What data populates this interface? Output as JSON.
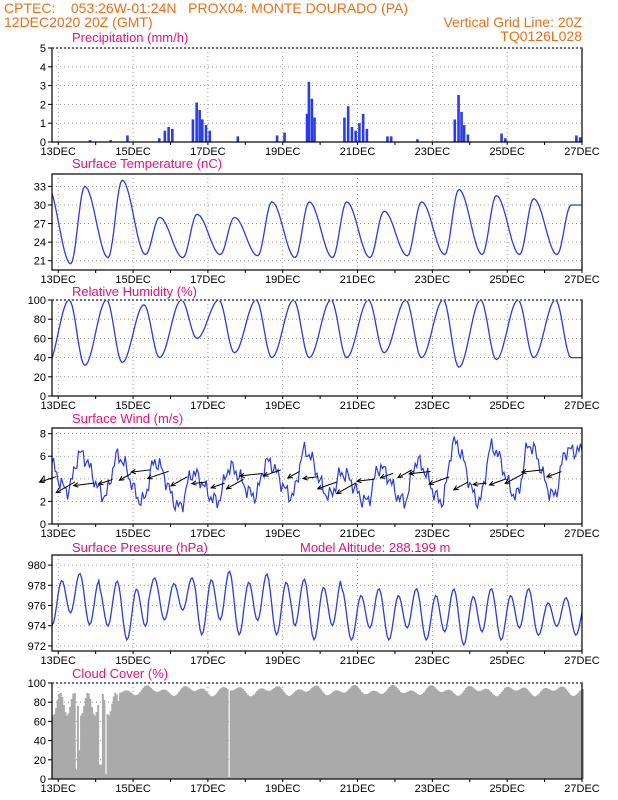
{
  "header": {
    "line1": "CPTEC:    053:26W-01:24N   PROX04: MONTE DOURADO (PA)",
    "line2_left": "12DEC2020 20Z (GMT)",
    "line2_right": "Vertical Grid Line: 20Z",
    "line3_right": "TQ0126L028"
  },
  "colors": {
    "header": "#e8701a",
    "title": "#e8127a",
    "series": "#2a3de0",
    "cloud": "#aaaaaa",
    "grid": "#888888",
    "arrow": "#000000"
  },
  "x_axis": {
    "start_day": 12.833,
    "end_day": 27.0,
    "tick_days": [
      13,
      15,
      17,
      19,
      21,
      23,
      25,
      27
    ],
    "tick_labels": [
      "13DEC",
      "15DEC",
      "17DEC",
      "19DEC",
      "21DEC",
      "23DEC",
      "25DEC",
      "27DEC"
    ]
  },
  "model_altitude_note": "Model Altitude: 288.199 m",
  "chart_data": [
    {
      "type": "bar",
      "title": "Precipitation (mm/h)",
      "unit": "mm/h",
      "ylim": [
        0,
        5
      ],
      "yticks": [
        0,
        1,
        2,
        3,
        4,
        5
      ],
      "events": [
        {
          "day": 13.85,
          "value": 0.1
        },
        {
          "day": 14.4,
          "value": 0.1
        },
        {
          "day": 14.85,
          "value": 0.35
        },
        {
          "day": 15.7,
          "value": 0.2
        },
        {
          "day": 15.85,
          "value": 0.6
        },
        {
          "day": 15.95,
          "value": 0.8
        },
        {
          "day": 16.05,
          "value": 0.7
        },
        {
          "day": 16.6,
          "value": 1.2
        },
        {
          "day": 16.7,
          "value": 2.1
        },
        {
          "day": 16.78,
          "value": 1.7
        },
        {
          "day": 16.85,
          "value": 1.2
        },
        {
          "day": 16.95,
          "value": 0.9
        },
        {
          "day": 17.05,
          "value": 0.6
        },
        {
          "day": 17.8,
          "value": 0.3
        },
        {
          "day": 18.85,
          "value": 0.35
        },
        {
          "day": 19.05,
          "value": 0.5
        },
        {
          "day": 19.65,
          "value": 1.5
        },
        {
          "day": 19.7,
          "value": 3.2
        },
        {
          "day": 19.78,
          "value": 2.3
        },
        {
          "day": 19.85,
          "value": 1.3
        },
        {
          "day": 20.65,
          "value": 1.3
        },
        {
          "day": 20.75,
          "value": 1.9
        },
        {
          "day": 20.85,
          "value": 0.8
        },
        {
          "day": 20.95,
          "value": 0.6
        },
        {
          "day": 21.05,
          "value": 1.0
        },
        {
          "day": 21.15,
          "value": 1.5
        },
        {
          "day": 21.25,
          "value": 0.7
        },
        {
          "day": 21.8,
          "value": 0.3
        },
        {
          "day": 21.9,
          "value": 0.3
        },
        {
          "day": 22.6,
          "value": 0.15
        },
        {
          "day": 23.6,
          "value": 1.2
        },
        {
          "day": 23.7,
          "value": 2.5
        },
        {
          "day": 23.78,
          "value": 1.6
        },
        {
          "day": 23.85,
          "value": 0.9
        },
        {
          "day": 23.95,
          "value": 0.4
        },
        {
          "day": 24.85,
          "value": 0.45
        },
        {
          "day": 24.95,
          "value": 0.2
        },
        {
          "day": 26.85,
          "value": 0.35
        },
        {
          "day": 26.95,
          "value": 0.25
        }
      ]
    },
    {
      "type": "line",
      "title": "Surface Temperature (nC)",
      "unit": "°C",
      "ylim": [
        19.5,
        35
      ],
      "yticks": [
        21,
        24,
        27,
        30,
        33
      ],
      "daily_min": [
        20.5,
        20.5,
        21.5,
        22.0,
        21.5,
        22.0,
        21.8,
        21.5,
        21.5,
        21.5,
        21.8,
        22.0,
        22.0,
        22.0,
        22.0
      ],
      "daily_max": [
        33.0,
        33.0,
        34.0,
        28.0,
        28.5,
        28.0,
        30.5,
        30.5,
        30.5,
        29.0,
        30.5,
        32.5,
        31.5,
        31.0,
        30.0
      ],
      "note": "diurnal cycle: min ~08Z, max ~17Z"
    },
    {
      "type": "line",
      "title": "Relative Humidity (%)",
      "unit": "%",
      "ylim": [
        0,
        100
      ],
      "yticks": [
        0,
        20,
        40,
        60,
        80,
        100
      ],
      "daily_max": [
        100,
        100,
        100,
        95,
        100,
        100,
        100,
        100,
        100,
        100,
        100,
        100,
        100,
        100,
        100
      ],
      "daily_min": [
        32,
        32,
        35,
        40,
        60,
        45,
        40,
        40,
        40,
        45,
        40,
        30,
        38,
        40,
        40
      ]
    },
    {
      "type": "line",
      "title": "Surface Wind (m/s)",
      "unit": "m/s",
      "ylim": [
        0,
        8.5
      ],
      "yticks": [
        0,
        2,
        4,
        6,
        8
      ],
      "daily_max": [
        6.5,
        6.2,
        6.0,
        5.5,
        4.5,
        5.0,
        5.5,
        6.5,
        4.5,
        5.0,
        5.5,
        7.2,
        6.8,
        7.0,
        6.5
      ],
      "daily_min": [
        2.0,
        3.0,
        2.5,
        2.0,
        1.5,
        2.0,
        2.5,
        2.5,
        2.5,
        2.0,
        2.0,
        2.0,
        2.0,
        2.5,
        2.5
      ],
      "arrow_direction": "from east-northeast"
    },
    {
      "type": "line",
      "title": "Surface Pressure (hPa)",
      "unit": "hPa",
      "ylim": [
        971.5,
        981
      ],
      "yticks": [
        972,
        974,
        976,
        978,
        980
      ],
      "semidiurnal_peaks": [
        979.5,
        978.8,
        979.0,
        979.8,
        979.5,
        979.0,
        978.0,
        978.0,
        978.0,
        978.0,
        977.0
      ],
      "semidiurnal_troughs": [
        974.0,
        972.5,
        974.5,
        973.0,
        973.0,
        972.5,
        972.5,
        972.5,
        972.0,
        972.5,
        973.0
      ],
      "mean_level": 976.0
    },
    {
      "type": "area",
      "title": "Cloud Cover (%)",
      "unit": "%",
      "ylim": [
        0,
        100
      ],
      "yticks": [
        0,
        20,
        40,
        60,
        80,
        100
      ],
      "typical_level": 92,
      "dips": [
        {
          "day": 13.45,
          "value": 10
        },
        {
          "day": 13.55,
          "value": 30
        },
        {
          "day": 14.1,
          "value": 15
        },
        {
          "day": 14.25,
          "value": 5
        },
        {
          "day": 17.55,
          "value": 2
        }
      ]
    }
  ],
  "panels": [
    {
      "title": "Precipitation (mm/h)"
    },
    {
      "title": "Surface Temperature (nC)"
    },
    {
      "title": "Relative Humidity (%)"
    },
    {
      "title": "Surface Wind (m/s)"
    },
    {
      "title": "Surface Pressure (hPa)"
    },
    {
      "title": "Cloud Cover (%)"
    }
  ]
}
